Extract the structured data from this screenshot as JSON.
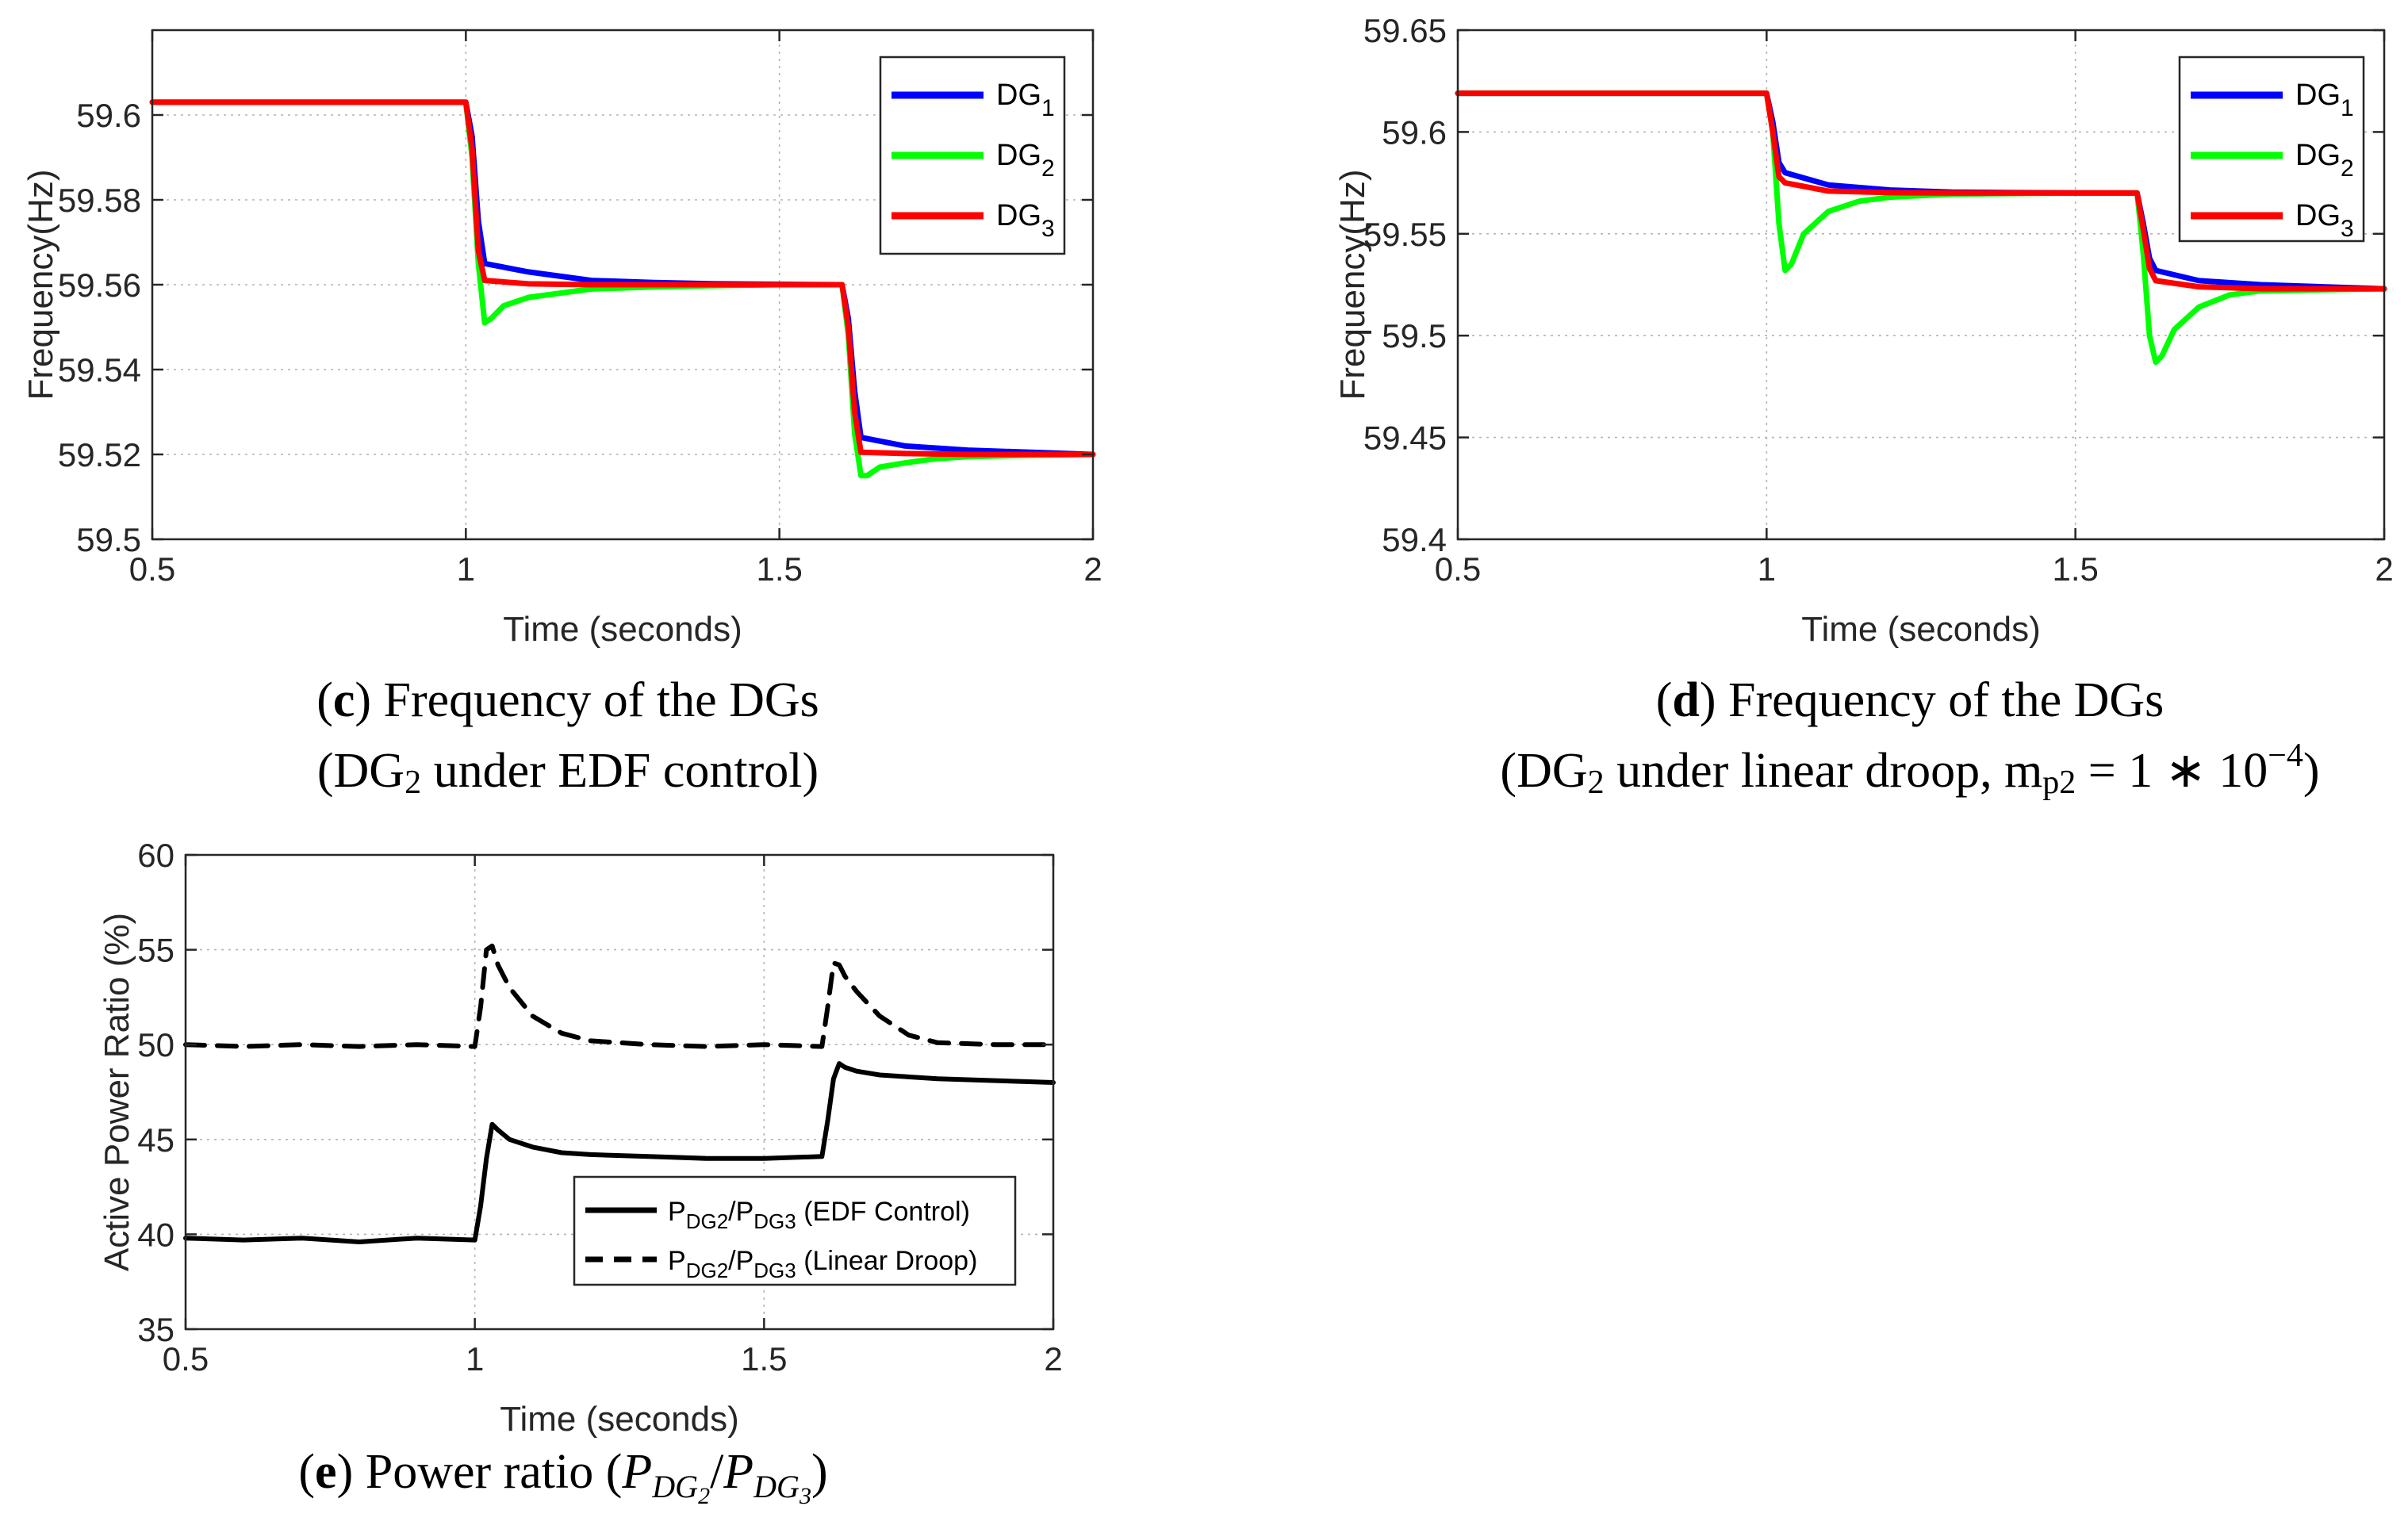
{
  "chart_data": [
    {
      "id": "c",
      "type": "line",
      "xlabel": "Time (seconds)",
      "ylabel": "Frequency(Hz)",
      "xlim": [
        0.5,
        2
      ],
      "ylim": [
        59.5,
        59.62
      ],
      "xticks": [
        0.5,
        1,
        1.5,
        2
      ],
      "xtick_labels": [
        "0.5",
        "1",
        "1.5",
        "2"
      ],
      "yticks": [
        59.5,
        59.52,
        59.54,
        59.56,
        59.58,
        59.6
      ],
      "ytick_labels": [
        "59.5",
        "59.52",
        "59.54",
        "59.56",
        "59.58",
        "59.6"
      ],
      "grid": true,
      "legend_position": "top-right",
      "series": [
        {
          "name": "DG",
          "sub": "1",
          "color": "#0000ff",
          "x": [
            0.5,
            1.0,
            1.01,
            1.02,
            1.03,
            1.1,
            1.2,
            1.3,
            1.4,
            1.5,
            1.6,
            1.61,
            1.62,
            1.63,
            1.7,
            1.8,
            1.9,
            2.0
          ],
          "y": [
            59.603,
            59.603,
            59.595,
            59.575,
            59.565,
            59.563,
            59.561,
            59.5605,
            59.5602,
            59.5601,
            59.56,
            59.552,
            59.535,
            59.524,
            59.522,
            59.521,
            59.5205,
            59.52
          ]
        },
        {
          "name": "DG",
          "sub": "2",
          "color": "#00ff00",
          "x": [
            0.5,
            1.0,
            1.01,
            1.02,
            1.03,
            1.04,
            1.06,
            1.1,
            1.15,
            1.2,
            1.3,
            1.4,
            1.5,
            1.6,
            1.61,
            1.62,
            1.63,
            1.64,
            1.66,
            1.7,
            1.75,
            1.8,
            1.9,
            2.0
          ],
          "y": [
            59.603,
            59.603,
            59.59,
            59.565,
            59.551,
            59.552,
            59.555,
            59.557,
            59.558,
            59.559,
            59.5595,
            59.5598,
            59.56,
            59.56,
            59.548,
            59.525,
            59.515,
            59.515,
            59.517,
            59.518,
            59.519,
            59.5195,
            59.5198,
            59.52
          ]
        },
        {
          "name": "DG",
          "sub": "3",
          "color": "#ff0000",
          "x": [
            0.5,
            1.0,
            1.01,
            1.02,
            1.03,
            1.1,
            1.2,
            1.3,
            1.4,
            1.5,
            1.6,
            1.61,
            1.62,
            1.63,
            1.7,
            1.8,
            1.9,
            2.0
          ],
          "y": [
            59.603,
            59.603,
            59.592,
            59.568,
            59.561,
            59.5602,
            59.56,
            59.56,
            59.56,
            59.56,
            59.56,
            59.55,
            59.53,
            59.5205,
            59.5202,
            59.52,
            59.52,
            59.52
          ]
        }
      ]
    },
    {
      "id": "d",
      "type": "line",
      "xlabel": "Time (seconds)",
      "ylabel": "Frequency(Hz)",
      "xlim": [
        0.5,
        2
      ],
      "ylim": [
        59.4,
        59.65
      ],
      "xticks": [
        0.5,
        1,
        1.5,
        2
      ],
      "xtick_labels": [
        "0.5",
        "1",
        "1.5",
        "2"
      ],
      "yticks": [
        59.4,
        59.45,
        59.5,
        59.55,
        59.6,
        59.65
      ],
      "ytick_labels": [
        "59.4",
        "59.45",
        "59.5",
        "59.55",
        "59.6",
        "59.65"
      ],
      "grid": true,
      "legend_position": "top-right",
      "series": [
        {
          "name": "DG",
          "sub": "1",
          "color": "#0000ff",
          "x": [
            0.5,
            1.0,
            1.01,
            1.02,
            1.03,
            1.1,
            1.2,
            1.3,
            1.4,
            1.5,
            1.6,
            1.61,
            1.62,
            1.63,
            1.7,
            1.8,
            1.9,
            2.0
          ],
          "y": [
            59.619,
            59.619,
            59.605,
            59.585,
            59.58,
            59.574,
            59.5715,
            59.5705,
            59.5702,
            59.5701,
            59.57,
            59.555,
            59.538,
            59.532,
            59.527,
            59.525,
            59.524,
            59.523
          ]
        },
        {
          "name": "DG",
          "sub": "2",
          "color": "#00ff00",
          "x": [
            0.5,
            1.0,
            1.01,
            1.02,
            1.03,
            1.04,
            1.06,
            1.1,
            1.15,
            1.2,
            1.3,
            1.4,
            1.5,
            1.6,
            1.61,
            1.62,
            1.63,
            1.64,
            1.66,
            1.7,
            1.75,
            1.8,
            1.9,
            2.0
          ],
          "y": [
            59.619,
            59.619,
            59.6,
            59.555,
            59.532,
            59.535,
            59.55,
            59.561,
            59.566,
            59.568,
            59.5695,
            59.5698,
            59.57,
            59.57,
            59.54,
            59.5,
            59.487,
            59.49,
            59.503,
            59.514,
            59.52,
            59.522,
            59.5225,
            59.523
          ]
        },
        {
          "name": "DG",
          "sub": "3",
          "color": "#ff0000",
          "x": [
            0.5,
            1.0,
            1.01,
            1.02,
            1.03,
            1.1,
            1.2,
            1.3,
            1.4,
            1.5,
            1.6,
            1.61,
            1.62,
            1.63,
            1.7,
            1.8,
            1.9,
            2.0
          ],
          "y": [
            59.619,
            59.619,
            59.6,
            59.578,
            59.575,
            59.571,
            59.5702,
            59.57,
            59.57,
            59.57,
            59.57,
            59.552,
            59.533,
            59.527,
            59.524,
            59.523,
            59.523,
            59.523
          ]
        }
      ]
    },
    {
      "id": "e",
      "type": "line",
      "xlabel": "Time (seconds)",
      "ylabel": "Active Power Ratio (%)",
      "xlim": [
        0.5,
        2
      ],
      "ylim": [
        35,
        60
      ],
      "xticks": [
        0.5,
        1,
        1.5,
        2
      ],
      "xtick_labels": [
        "0.5",
        "1",
        "1.5",
        "2"
      ],
      "yticks": [
        35,
        40,
        45,
        50,
        55,
        60
      ],
      "ytick_labels": [
        "35",
        "40",
        "45",
        "50",
        "55",
        "60"
      ],
      "grid": true,
      "legend_position": "bottom-right",
      "series": [
        {
          "name_main": "P",
          "name_sub1": "DG2",
          "name_slash": "/P",
          "name_sub2": "DG3",
          "name_suffix": " (EDF Control)",
          "color": "#000000",
          "style": "solid",
          "x": [
            0.5,
            0.6,
            0.7,
            0.8,
            0.9,
            1.0,
            1.01,
            1.02,
            1.03,
            1.04,
            1.06,
            1.1,
            1.15,
            1.2,
            1.3,
            1.4,
            1.5,
            1.6,
            1.61,
            1.62,
            1.63,
            1.64,
            1.66,
            1.7,
            1.8,
            1.9,
            2.0
          ],
          "y": [
            39.8,
            39.7,
            39.8,
            39.6,
            39.8,
            39.7,
            41.5,
            44.0,
            45.8,
            45.5,
            45.0,
            44.6,
            44.3,
            44.2,
            44.1,
            44.0,
            44.0,
            44.1,
            46.0,
            48.2,
            49.0,
            48.8,
            48.6,
            48.4,
            48.2,
            48.1,
            48.0
          ]
        },
        {
          "name_main": "P",
          "name_sub1": "DG2",
          "name_slash": "/P",
          "name_sub2": "DG3",
          "name_suffix": " (Linear Droop)",
          "color": "#000000",
          "style": "dashed",
          "x": [
            0.5,
            0.6,
            0.7,
            0.8,
            0.9,
            1.0,
            1.01,
            1.02,
            1.03,
            1.04,
            1.06,
            1.1,
            1.15,
            1.2,
            1.3,
            1.4,
            1.5,
            1.6,
            1.61,
            1.62,
            1.63,
            1.64,
            1.66,
            1.7,
            1.75,
            1.8,
            1.9,
            2.0
          ],
          "y": [
            50.0,
            49.9,
            50.0,
            49.9,
            50.0,
            49.9,
            52.0,
            55.0,
            55.2,
            54.2,
            53.0,
            51.5,
            50.6,
            50.2,
            50.0,
            49.9,
            50.0,
            49.9,
            52.0,
            54.3,
            54.2,
            53.6,
            52.8,
            51.5,
            50.5,
            50.1,
            50.0,
            50.0
          ]
        }
      ]
    }
  ],
  "captions": {
    "c": {
      "open": "(",
      "letter": "c",
      "close": ")",
      "title": " Frequency of the DGs",
      "line2_open": "(DG",
      "line2_sub": "2",
      "line2_rest": " under EDF control)"
    },
    "d": {
      "open": "(",
      "letter": "d",
      "close": ")",
      "title": " Frequency of the DGs",
      "line2_open": "(DG",
      "line2_sub": "2",
      "line2_mid": " under linear droop, m",
      "line2_sub2": "p2",
      "line2_eq": " = 1 ∗ 10",
      "line2_sup": "−4",
      "line2_close": ")"
    },
    "e": {
      "open": "(",
      "letter": "e",
      "close": ")",
      "title": " Power ratio (",
      "p1": "P",
      "p1_sub": "DG",
      "p1_subsub": "2",
      "slash": "/",
      "p2": "P",
      "p2_sub": "DG",
      "p2_subsub": "3",
      "end": ")"
    }
  }
}
